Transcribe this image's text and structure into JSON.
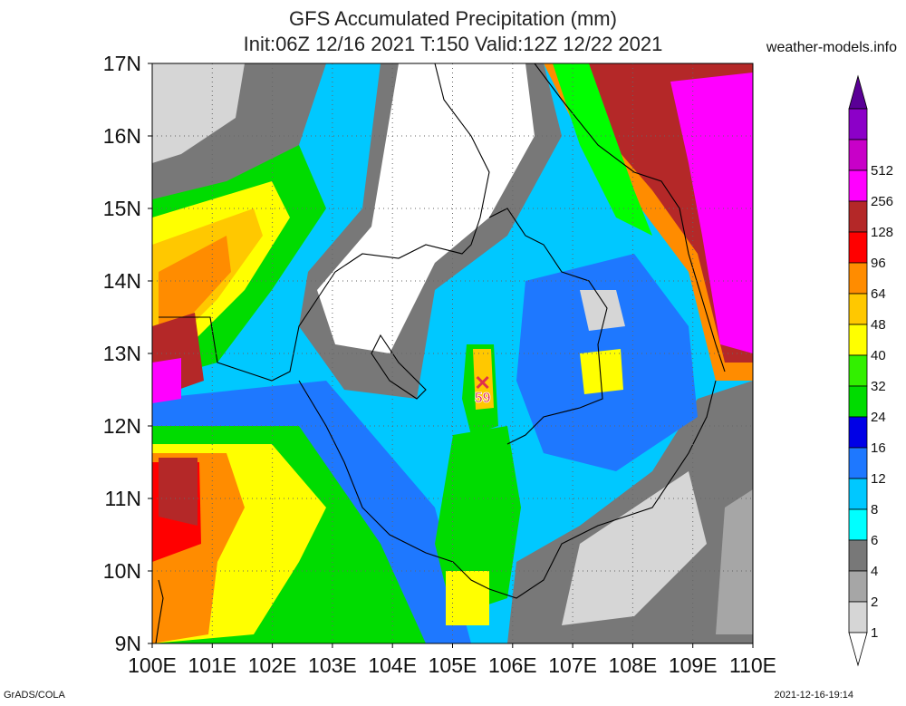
{
  "title": {
    "line1": "GFS Accumulated Precipitation (mm)",
    "line2": "Init:06Z 12/16 2021 T:150 Valid:12Z 12/22 2021"
  },
  "site": "weather-models.info",
  "credit": "GrADS/COLA",
  "timestamp": "2021-12-16-19:14",
  "axes": {
    "lat_labels": [
      "17N",
      "16N",
      "15N",
      "14N",
      "13N",
      "12N",
      "11N",
      "10N",
      "9N"
    ],
    "lon_labels": [
      "100E",
      "101E",
      "102E",
      "103E",
      "104E",
      "105E",
      "106E",
      "107E",
      "108E",
      "109E",
      "110E"
    ],
    "lat_range": [
      9,
      17
    ],
    "lon_range": [
      100,
      110
    ],
    "grid": "dotted"
  },
  "legend": {
    "levels": [
      "1",
      "2",
      "4",
      "6",
      "8",
      "12",
      "16",
      "24",
      "32",
      "40",
      "48",
      "64",
      "96",
      "128",
      "256",
      "512"
    ],
    "colors": [
      "#d6d6d6",
      "#a6a6a6",
      "#787878",
      "#00ffff",
      "#00c8ff",
      "#1e78ff",
      "#0000e6",
      "#00dc00",
      "#32f000",
      "#ffff00",
      "#ffc800",
      "#ff8c00",
      "#ff0000",
      "#b42828",
      "#ff00ff",
      "#c800c8",
      "#8c00c8",
      "#5a0096"
    ]
  },
  "marker": {
    "label": "59",
    "lat": 12.5,
    "lon": 105.5
  }
}
